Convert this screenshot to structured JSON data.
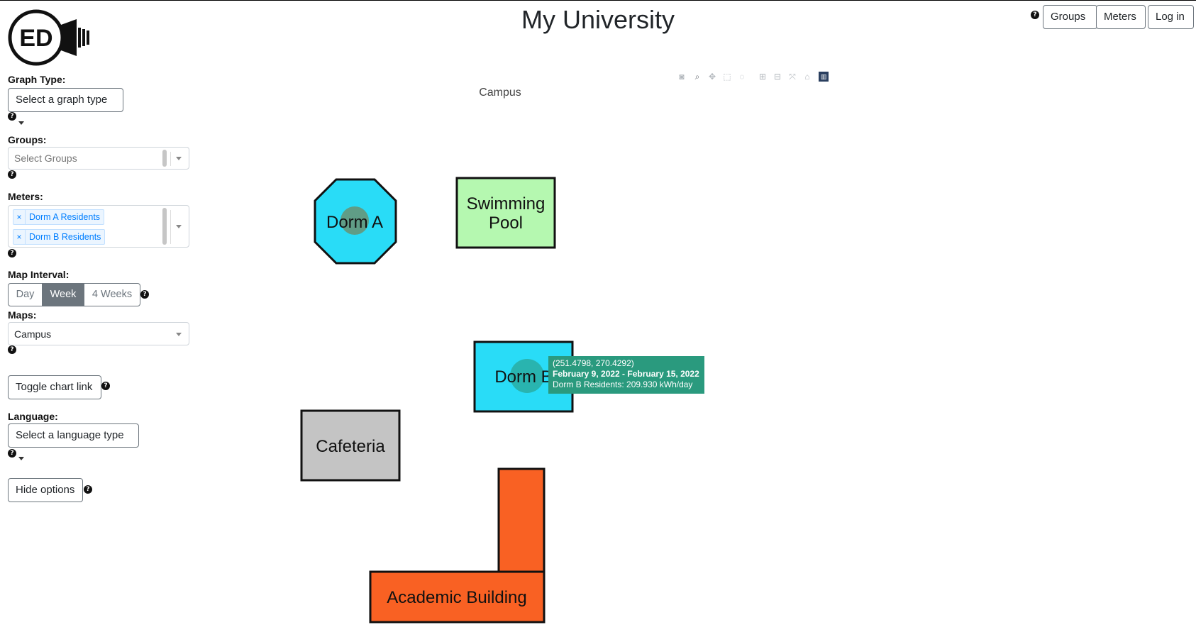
{
  "header": {
    "title": "My University",
    "logo_text": "ED",
    "nav": [
      "Groups",
      "Meters",
      "Log in"
    ]
  },
  "sidebar": {
    "graph_type": {
      "label": "Graph Type:",
      "button": "Select a graph type"
    },
    "groups": {
      "label": "Groups:",
      "placeholder": "Select Groups"
    },
    "meters": {
      "label": "Meters:",
      "selected": [
        "Dorm A Residents",
        "Dorm B Residents"
      ]
    },
    "map_interval": {
      "label": "Map Interval:",
      "options": [
        "Day",
        "Week",
        "4 Weeks"
      ],
      "selected": "Week"
    },
    "maps": {
      "label": "Maps:",
      "value": "Campus"
    },
    "toggle_chart_link": "Toggle chart link",
    "language": {
      "label": "Language:",
      "button": "Select a language type"
    },
    "hide_options": "Hide options"
  },
  "plot": {
    "title": "Campus",
    "modebar": [
      "camera-icon",
      "zoom-icon",
      "pan-icon",
      "box-select-icon",
      "lasso-icon",
      "zoom-in-icon",
      "zoom-out-icon",
      "autoscale-icon",
      "reset-axes-icon",
      "plotly-logo-icon"
    ],
    "buildings": [
      {
        "label": "Dorm A",
        "color": "#29dcf7"
      },
      {
        "label": "Swimming Pool",
        "color": "#b5f8b0"
      },
      {
        "label": "Dorm B",
        "color": "#29dcf7"
      },
      {
        "label": "Cafeteria",
        "color": "#c4c4c4"
      },
      {
        "label": "Academic Building",
        "color": "#f96123"
      }
    ],
    "tooltip": {
      "coords": "(251.4798, 270.4292)",
      "dates": "February 9, 2022 - February 15, 2022",
      "value": "Dorm B Residents: 209.930 kWh/day",
      "color": "#2a9a7e"
    }
  }
}
